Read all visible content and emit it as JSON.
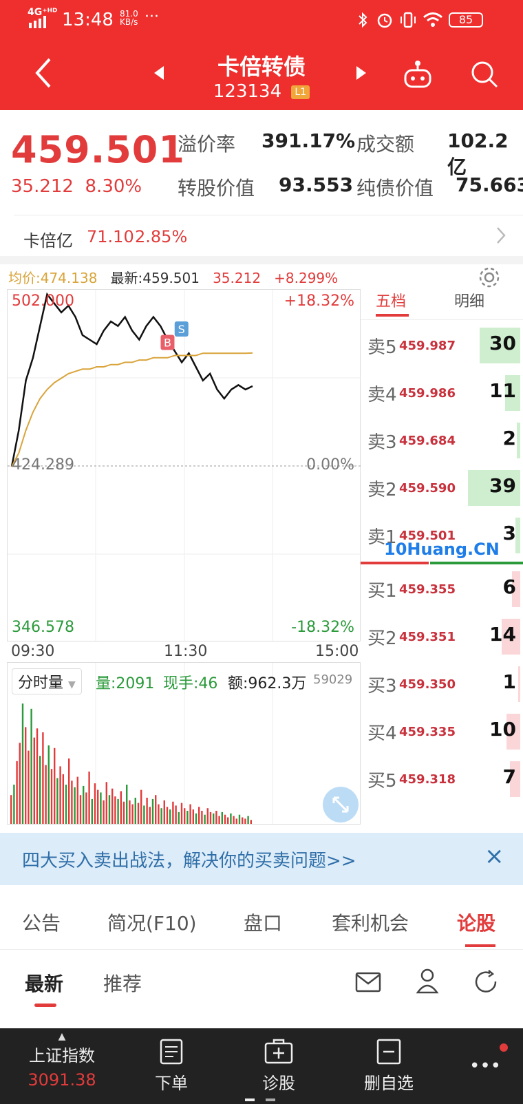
{
  "status_bar": {
    "network": "4G⁺ᴴᴰ",
    "time": "13:48",
    "speed_value": "81.0",
    "speed_unit": "KB/s",
    "more": "···",
    "battery": "85"
  },
  "header": {
    "title": "卡倍转债",
    "code": "123134",
    "level_badge": "L1"
  },
  "quote": {
    "price": "459.501",
    "change": "35.212",
    "change_pct": "8.30%",
    "fields": {
      "premium_label": "溢价率",
      "premium_value": "391.17%",
      "turnover_label": "成交额",
      "turnover_value": "102.2亿",
      "conv_value_label": "转股价值",
      "conv_value_value": "93.553",
      "bond_value_label": "纯债价值",
      "bond_value_value": "75.663"
    },
    "underlying": {
      "name": "卡倍亿",
      "price": "71.10",
      "change_pct": "2.85%"
    }
  },
  "chart_header": {
    "avg_label": "均价:474.138",
    "latest_label": "最新:459.501",
    "change": "35.212",
    "change_pct": "+8.299%"
  },
  "chart_axes": {
    "y_top": "502.000",
    "y_mid": "424.289",
    "y_bottom": "346.578",
    "pct_top": "+18.32%",
    "pct_mid": "0.00%",
    "pct_bottom": "-18.32%",
    "x_start": "09:30",
    "x_mid": "11:30",
    "x_end": "15:00"
  },
  "chart_data": {
    "type": "line",
    "title": "",
    "xlabel": "",
    "ylabel": "",
    "ylim": [
      346.578,
      502.0
    ],
    "x": [
      "09:30",
      "09:35",
      "09:40",
      "09:45",
      "09:50",
      "09:55",
      "10:00",
      "10:05",
      "10:10",
      "10:15",
      "10:20",
      "10:25",
      "10:30",
      "10:35",
      "10:40",
      "10:45",
      "10:50",
      "10:55",
      "11:00",
      "11:05",
      "11:10",
      "11:15",
      "11:20",
      "11:25",
      "11:30",
      "13:05",
      "13:10",
      "13:15",
      "13:20",
      "13:25",
      "13:30",
      "13:35",
      "13:40",
      "13:45",
      "13:48"
    ],
    "series": [
      {
        "name": "最新",
        "values": [
          424,
          440,
          462,
          472,
          486,
          500,
          496,
          492,
          495,
          490,
          482,
          480,
          478,
          484,
          488,
          486,
          490,
          484,
          480,
          486,
          490,
          486,
          480,
          475,
          470,
          474,
          468,
          462,
          465,
          458,
          454,
          458,
          460,
          458,
          459.5
        ]
      },
      {
        "name": "均价",
        "values": [
          424,
          430,
          440,
          448,
          454,
          458,
          461,
          463,
          465,
          466,
          467,
          467,
          468,
          468,
          469,
          469,
          470,
          470,
          471,
          471,
          472,
          472,
          472,
          473,
          473,
          473,
          473,
          474,
          474,
          474,
          474,
          474,
          474,
          474,
          474.1
        ]
      }
    ],
    "annotations": [
      {
        "label": "S",
        "x": "11:25"
      },
      {
        "label": "B",
        "x": "11:20"
      }
    ]
  },
  "order_book": {
    "tab_5": "五档",
    "tab_detail": "明细",
    "asks": [
      {
        "label": "卖5",
        "price": "459.987",
        "qty": "30",
        "bar": 0.7
      },
      {
        "label": "卖4",
        "price": "459.986",
        "qty": "11",
        "bar": 0.26
      },
      {
        "label": "卖3",
        "price": "459.684",
        "qty": "2",
        "bar": 0.06
      },
      {
        "label": "卖2",
        "price": "459.590",
        "qty": "39",
        "bar": 0.9
      },
      {
        "label": "卖1",
        "price": "459.501",
        "qty": "3",
        "bar": 0.08
      }
    ],
    "bids": [
      {
        "label": "买1",
        "price": "459.355",
        "qty": "6",
        "bar": 0.14
      },
      {
        "label": "买2",
        "price": "459.351",
        "qty": "14",
        "bar": 0.32
      },
      {
        "label": "买3",
        "price": "459.350",
        "qty": "1",
        "bar": 0.04
      },
      {
        "label": "买4",
        "price": "459.335",
        "qty": "10",
        "bar": 0.24
      },
      {
        "label": "买5",
        "price": "459.318",
        "qty": "7",
        "bar": 0.18
      }
    ],
    "watermark": "10Huang.CN",
    "split": {
      "buy_ratio": 0.42
    }
  },
  "volume": {
    "selector": "分时量",
    "vol": "量:2091",
    "hand": "现手:46",
    "amount": "额:962.3万",
    "max": "59029",
    "bars": [
      0.22,
      0.3,
      0.48,
      0.62,
      0.92,
      0.74,
      0.56,
      0.88,
      0.66,
      0.73,
      0.52,
      0.7,
      0.45,
      0.6,
      0.42,
      0.58,
      0.35,
      0.44,
      0.38,
      0.3,
      0.5,
      0.33,
      0.28,
      0.36,
      0.22,
      0.29,
      0.24,
      0.4,
      0.19,
      0.31,
      0.26,
      0.24,
      0.18,
      0.32,
      0.22,
      0.27,
      0.21,
      0.19,
      0.25,
      0.17,
      0.3,
      0.18,
      0.15,
      0.2,
      0.16,
      0.26,
      0.14,
      0.2,
      0.13,
      0.19,
      0.22,
      0.15,
      0.12,
      0.18,
      0.13,
      0.11,
      0.17,
      0.14,
      0.09,
      0.16,
      0.12,
      0.1,
      0.15,
      0.11,
      0.08,
      0.13,
      0.1,
      0.07,
      0.12,
      0.09,
      0.08,
      0.1,
      0.06,
      0.09,
      0.07,
      0.05,
      0.08,
      0.06,
      0.04,
      0.07,
      0.05,
      0.04,
      0.06,
      0.03
    ]
  },
  "banner": {
    "text": "四大买入卖出战法，解决你的买卖问题>>",
    "close": "×"
  },
  "tabs": [
    {
      "label": "公告",
      "active": false
    },
    {
      "label": "简况(F10)",
      "active": false
    },
    {
      "label": "盘口",
      "active": false
    },
    {
      "label": "套利机会",
      "active": false
    },
    {
      "label": "论股",
      "active": true
    }
  ],
  "subtabs": [
    {
      "label": "最新",
      "active": true
    },
    {
      "label": "推荐",
      "active": false
    }
  ],
  "bottom_nav": {
    "index_name": "上证指数",
    "index_value": "3091.38",
    "items": [
      "下单",
      "诊股",
      "删自选"
    ],
    "more": "•••"
  },
  "colors": {
    "brand_red": "#ef2e2e",
    "up_red": "#e23b3b",
    "down_green": "#2a9a3a",
    "avg_line": "#d9a43a",
    "price_line": "#111111"
  }
}
